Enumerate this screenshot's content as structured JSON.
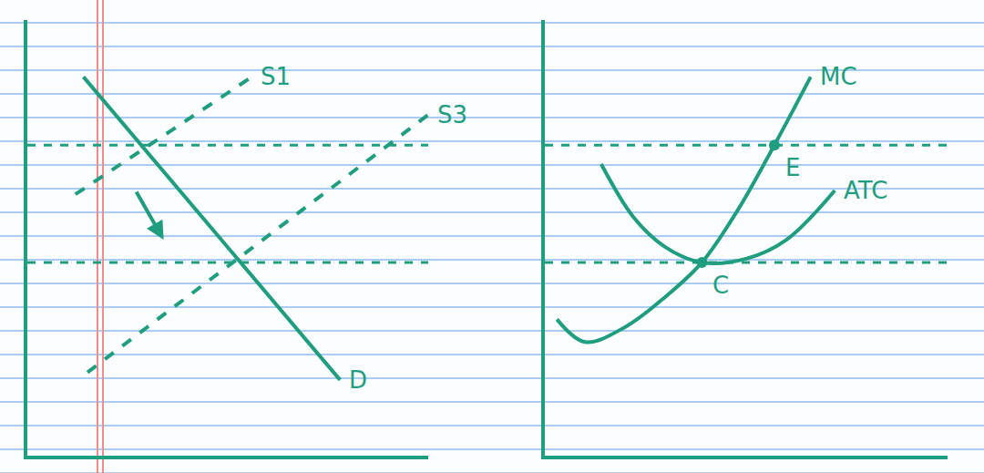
{
  "chart_data": [
    {
      "type": "line",
      "tick_labels": false,
      "color": "#1f9e7f",
      "xlim": [
        0,
        100
      ],
      "ylim": [
        0,
        115
      ],
      "series": [
        {
          "name": "D",
          "line_style": "solid",
          "x": [
            14,
            78
          ],
          "values": [
            100,
            20
          ]
        },
        {
          "name": "S1",
          "line_style": "dashed",
          "x": [
            12,
            56
          ],
          "values": [
            69,
            100
          ]
        },
        {
          "name": "S3",
          "line_style": "dashed",
          "x": [
            15,
            100
          ],
          "values": [
            22,
            90
          ]
        }
      ],
      "hlines": [
        82,
        51
      ],
      "arrow": {
        "x": [
          27,
          34
        ],
        "y": [
          70,
          57
        ]
      }
    },
    {
      "type": "line",
      "tick_labels": false,
      "color": "#1f9e7f",
      "xlim": [
        0,
        100
      ],
      "ylim": [
        0,
        115
      ],
      "series": [
        {
          "name": "MC",
          "line_style": "solid",
          "x": [
            3,
            10,
            20,
            30,
            39,
            48,
            57,
            66
          ],
          "values": [
            36,
            30,
            34,
            42,
            51,
            65,
            82,
            100
          ]
        },
        {
          "name": "ATC",
          "line_style": "solid",
          "x": [
            14,
            22,
            30,
            39,
            50,
            60,
            72
          ],
          "values": [
            77,
            63,
            55,
            51,
            52,
            57,
            70
          ]
        }
      ],
      "hlines": [
        82,
        51
      ],
      "points": [
        {
          "label": "E",
          "x": 57,
          "y": 82
        },
        {
          "label": "C",
          "x": 39,
          "y": 51
        }
      ]
    }
  ]
}
